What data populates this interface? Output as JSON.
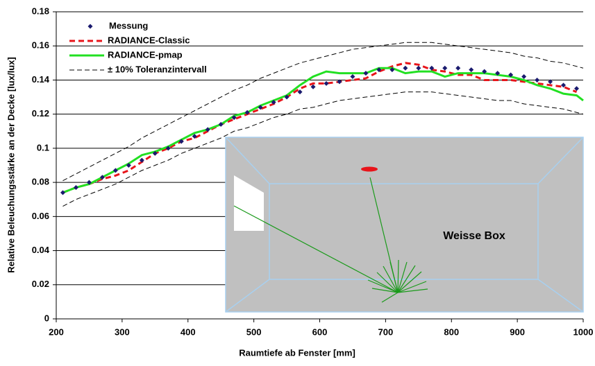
{
  "chart_data": {
    "type": "line",
    "y_label": "Relative Beleuchungsstärke an der Decke [lux/lux]",
    "x_label": "Raumtiefe ab Fenster [mm]",
    "inset_label": "Weisse Box",
    "xlim": [
      200,
      1000
    ],
    "xticks": [
      200,
      300,
      400,
      500,
      600,
      700,
      800,
      900,
      1000
    ],
    "ylim": [
      0,
      0.18
    ],
    "yticks": [
      0,
      0.02,
      0.04,
      0.06,
      0.08,
      0.1,
      0.12,
      0.14,
      0.16,
      0.18
    ],
    "grid": true,
    "x": [
      210,
      230,
      250,
      270,
      290,
      310,
      330,
      350,
      370,
      390,
      410,
      430,
      450,
      470,
      490,
      510,
      530,
      550,
      570,
      590,
      610,
      630,
      650,
      670,
      690,
      710,
      730,
      750,
      770,
      790,
      810,
      830,
      850,
      870,
      890,
      910,
      930,
      950,
      970,
      990,
      1000
    ],
    "series": [
      {
        "name": "Messung",
        "color": "#1a1a6e",
        "style": "markers",
        "values": [
          0.074,
          0.077,
          0.08,
          0.083,
          0.087,
          0.09,
          0.093,
          0.097,
          0.1,
          0.104,
          0.107,
          0.111,
          0.114,
          0.118,
          0.121,
          0.124,
          0.127,
          0.13,
          0.133,
          0.136,
          0.138,
          0.139,
          0.142,
          0.144,
          0.146,
          0.146,
          0.147,
          0.147,
          0.147,
          0.147,
          0.147,
          0.146,
          0.145,
          0.144,
          0.143,
          0.142,
          0.14,
          0.139,
          0.137,
          0.135,
          null
        ]
      },
      {
        "name": "RADIANCE-Classic",
        "color": "#e8141a",
        "style": "dashed",
        "values": [
          0.074,
          0.077,
          0.079,
          0.082,
          0.084,
          0.087,
          0.092,
          0.097,
          0.1,
          0.104,
          0.106,
          0.11,
          0.114,
          0.117,
          0.12,
          0.123,
          0.126,
          0.13,
          0.135,
          0.138,
          0.138,
          0.139,
          0.14,
          0.141,
          0.145,
          0.148,
          0.15,
          0.149,
          0.146,
          0.145,
          0.143,
          0.143,
          0.14,
          0.14,
          0.14,
          0.139,
          0.138,
          0.137,
          0.136,
          0.133,
          null
        ]
      },
      {
        "name": "RADIANCE-pmap",
        "color": "#22e022",
        "style": "solid",
        "values": [
          0.074,
          0.077,
          0.079,
          0.083,
          0.087,
          0.091,
          0.096,
          0.098,
          0.101,
          0.105,
          0.109,
          0.111,
          0.114,
          0.119,
          0.121,
          0.125,
          0.128,
          0.131,
          0.137,
          0.142,
          0.145,
          0.144,
          0.144,
          0.144,
          0.147,
          0.147,
          0.144,
          0.145,
          0.145,
          0.142,
          0.144,
          0.144,
          0.144,
          0.143,
          0.142,
          0.14,
          0.137,
          0.135,
          0.132,
          0.131,
          0.128
        ]
      },
      {
        "name": "± 10% Toleranzintervall",
        "color": "#000000",
        "style": "thin-dashed",
        "values": [
          0.081,
          0.085,
          0.089,
          0.093,
          0.097,
          0.101,
          0.106,
          0.11,
          0.114,
          0.118,
          0.122,
          0.126,
          0.13,
          0.134,
          0.137,
          0.141,
          0.144,
          0.147,
          0.15,
          0.152,
          0.154,
          0.156,
          0.158,
          0.159,
          0.16,
          0.161,
          0.162,
          0.162,
          0.162,
          0.161,
          0.16,
          0.159,
          0.158,
          0.157,
          0.156,
          0.154,
          0.153,
          0.151,
          0.15,
          0.148,
          0.147
        ]
      },
      {
        "color": "#000000",
        "style": "thin-dashed",
        "values": [
          0.066,
          0.07,
          0.073,
          0.076,
          0.079,
          0.083,
          0.087,
          0.09,
          0.093,
          0.097,
          0.1,
          0.103,
          0.106,
          0.11,
          0.112,
          0.115,
          0.118,
          0.12,
          0.123,
          0.124,
          0.126,
          0.128,
          0.129,
          0.13,
          0.131,
          0.132,
          0.133,
          0.133,
          0.133,
          0.132,
          0.131,
          0.13,
          0.129,
          0.128,
          0.128,
          0.126,
          0.125,
          0.124,
          0.123,
          0.121,
          0.12
        ]
      }
    ]
  }
}
